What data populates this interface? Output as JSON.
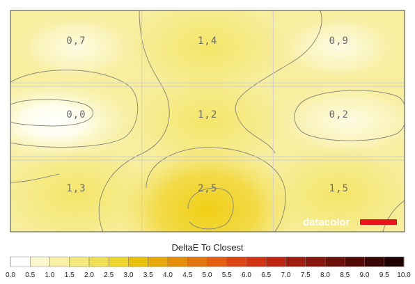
{
  "chart_data": {
    "type": "heatmap",
    "title": "DeltaE To Closest",
    "rows": 3,
    "cols": 3,
    "cells": [
      [
        0.7,
        1.4,
        0.9
      ],
      [
        0.0,
        1.2,
        0.2
      ],
      [
        1.3,
        2.5,
        1.5
      ]
    ],
    "cell_labels": [
      [
        "0,7",
        "1,4",
        "0,9"
      ],
      [
        "0,0",
        "1,2",
        "0,2"
      ],
      [
        "1,3",
        "2,5",
        "1,5"
      ]
    ],
    "scale": {
      "min": 0.0,
      "max": 10.0,
      "ticks": [
        "0.0",
        "0.5",
        "1.0",
        "1.5",
        "2.0",
        "2.5",
        "3.0",
        "3.5",
        "4.0",
        "4.5",
        "5.0",
        "5.5",
        "6.0",
        "6.5",
        "7.0",
        "7.5",
        "8.0",
        "8.5",
        "9.0",
        "9.5",
        "10.0"
      ],
      "colors": [
        "#ffffff",
        "#fbf7cf",
        "#f7f0a6",
        "#f3e87d",
        "#efe057",
        "#eed52c",
        "#e8c10c",
        "#e7a80c",
        "#e58e0c",
        "#e3760e",
        "#e25e11",
        "#dc4612",
        "#d23312",
        "#bd2511",
        "#a11c0f",
        "#86160c",
        "#6c1009",
        "#520b06",
        "#380704",
        "#1e0302"
      ]
    },
    "grid": true,
    "brand": {
      "name": "datacolor",
      "accent": "#e8161c"
    }
  }
}
